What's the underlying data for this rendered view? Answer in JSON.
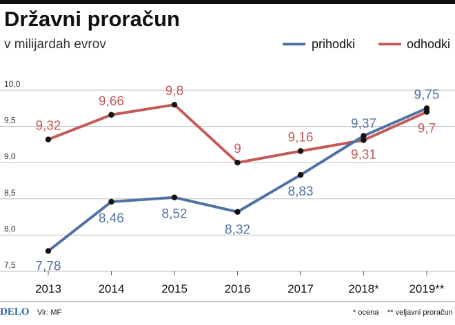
{
  "header": {
    "title": "Državni proračun",
    "subtitle": "v milijardah evrov"
  },
  "legend": {
    "items": [
      "prihodki",
      "odhodki"
    ]
  },
  "footer": {
    "brand": "DELO",
    "source": "Vir: MF",
    "note1": "* ocena",
    "note2": "** veljavni proračun"
  },
  "colors": {
    "prihodki": "#4f72a3",
    "odhodki": "#c45a58",
    "grid": "#bbbbbb",
    "brand": "#2a5ea8"
  },
  "chart_data": {
    "type": "line",
    "title": "Državni proračun",
    "subtitle": "v milijardah evrov",
    "x": [
      "2013",
      "2014",
      "2015",
      "2016",
      "2017",
      "2018*",
      "2019**"
    ],
    "ylim": [
      7.5,
      10.0
    ],
    "yticks": [
      "7,5",
      "8,0",
      "8,5",
      "9,0",
      "9,5",
      "10,0"
    ],
    "grid": true,
    "legend_position": "top-right",
    "series": [
      {
        "name": "prihodki",
        "values": [
          7.78,
          8.46,
          8.52,
          8.32,
          8.83,
          9.37,
          9.75
        ],
        "labels": [
          "7,78",
          "8,46",
          "8,52",
          "8,32",
          "8,83",
          "9,37",
          "9,75"
        ]
      },
      {
        "name": "odhodki",
        "values": [
          9.32,
          9.66,
          9.8,
          9.0,
          9.16,
          9.31,
          9.7
        ],
        "labels": [
          "9,32",
          "9,66",
          "9,8",
          "9",
          "9,16",
          "9,31",
          "9,7"
        ]
      }
    ]
  }
}
